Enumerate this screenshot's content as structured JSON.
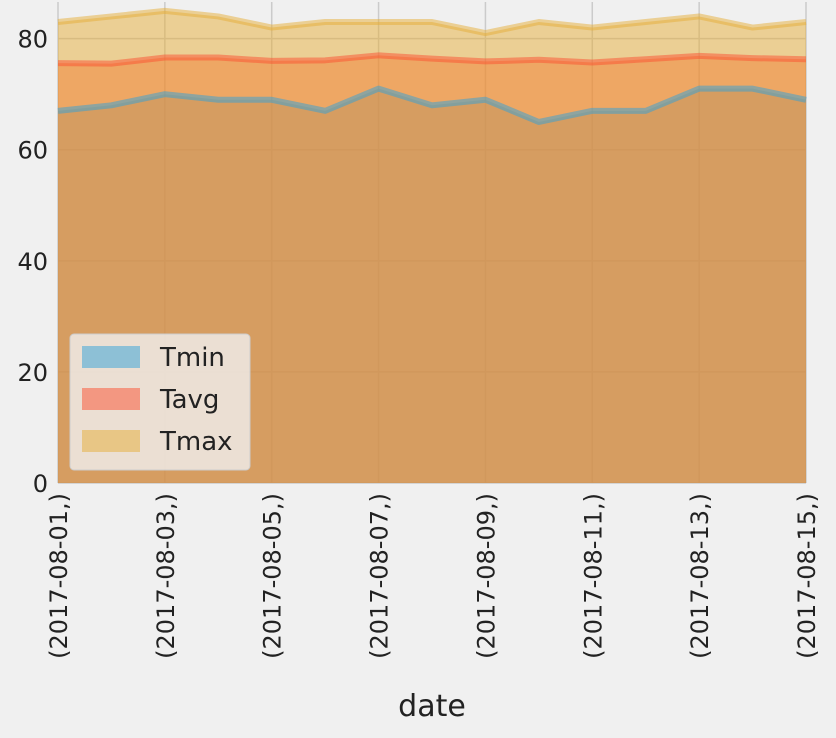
{
  "chart_data": {
    "type": "area",
    "xlabel": "date",
    "ylabel": "",
    "ylim": [
      0,
      86.6
    ],
    "yticks": [
      0,
      20,
      40,
      60,
      80
    ],
    "x": [
      "2017-08-01",
      "2017-08-02",
      "2017-08-03",
      "2017-08-04",
      "2017-08-05",
      "2017-08-06",
      "2017-08-07",
      "2017-08-08",
      "2017-08-09",
      "2017-08-10",
      "2017-08-11",
      "2017-08-12",
      "2017-08-13",
      "2017-08-14",
      "2017-08-15"
    ],
    "tick_labels": [
      "(2017-08-01,)",
      "(2017-08-03,)",
      "(2017-08-05,)",
      "(2017-08-07,)",
      "(2017-08-09,)",
      "(2017-08-11,)",
      "(2017-08-13,)",
      "(2017-08-15,)"
    ],
    "tick_indices": [
      0,
      2,
      4,
      6,
      8,
      10,
      12,
      14
    ],
    "stacked": false,
    "grid": true,
    "legend_position": "lower-left",
    "series": [
      {
        "name": "Tmin",
        "color": "#30a2da",
        "values": [
          67,
          68,
          70,
          69,
          69,
          67,
          71,
          68,
          69,
          65,
          67,
          67,
          71,
          71,
          69
        ]
      },
      {
        "name": "Tavg",
        "color": "#fc4f30",
        "values": [
          75.6,
          75.5,
          76.6,
          76.6,
          76.0,
          76.1,
          77.0,
          76.4,
          75.9,
          76.2,
          75.7,
          76.3,
          76.9,
          76.5,
          76.3
        ]
      },
      {
        "name": "Tmax",
        "color": "#e5ae38",
        "values": [
          83,
          84,
          85,
          84,
          82,
          83,
          83,
          83,
          81,
          83,
          82,
          83,
          84,
          82,
          83
        ]
      }
    ]
  }
}
